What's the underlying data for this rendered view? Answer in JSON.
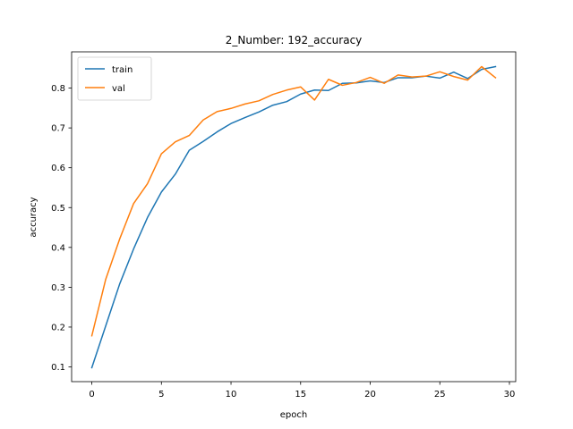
{
  "chart_data": {
    "type": "line",
    "title": "2_Number: 192_accuracy",
    "xlabel": "epoch",
    "ylabel": "accuracy",
    "xlim": [
      -1.45,
      30.45
    ],
    "ylim": [
      0.063,
      0.891
    ],
    "xticks": [
      0,
      5,
      10,
      15,
      20,
      25,
      30
    ],
    "yticks": [
      0.1,
      0.2,
      0.3,
      0.4,
      0.5,
      0.6,
      0.7,
      0.8
    ],
    "xtick_labels": [
      "0",
      "5",
      "10",
      "15",
      "20",
      "25",
      "30"
    ],
    "ytick_labels": [
      "0.1",
      "0.2",
      "0.3",
      "0.4",
      "0.5",
      "0.6",
      "0.7",
      "0.8"
    ],
    "grid": false,
    "legend_position": "upper-left",
    "series": [
      {
        "name": "train",
        "color": "#1f77b4",
        "x": [
          0,
          1,
          2,
          3,
          4,
          5,
          6,
          7,
          8,
          9,
          10,
          11,
          12,
          13,
          14,
          15,
          16,
          17,
          18,
          19,
          20,
          21,
          22,
          23,
          24,
          25,
          26,
          27,
          28,
          29
        ],
        "values": [
          0.098,
          0.203,
          0.308,
          0.396,
          0.475,
          0.539,
          0.584,
          0.644,
          0.666,
          0.69,
          0.711,
          0.726,
          0.74,
          0.757,
          0.766,
          0.785,
          0.795,
          0.794,
          0.812,
          0.813,
          0.818,
          0.814,
          0.826,
          0.826,
          0.83,
          0.825,
          0.84,
          0.824,
          0.847,
          0.854
        ]
      },
      {
        "name": "val",
        "color": "#ff7f0e",
        "x": [
          0,
          1,
          2,
          3,
          4,
          5,
          6,
          7,
          8,
          9,
          10,
          11,
          12,
          13,
          14,
          15,
          16,
          17,
          18,
          19,
          20,
          21,
          22,
          23,
          24,
          25,
          26,
          27,
          28,
          29
        ],
        "values": [
          0.178,
          0.32,
          0.421,
          0.51,
          0.56,
          0.635,
          0.665,
          0.681,
          0.72,
          0.741,
          0.749,
          0.76,
          0.768,
          0.784,
          0.795,
          0.803,
          0.77,
          0.822,
          0.807,
          0.814,
          0.827,
          0.812,
          0.833,
          0.828,
          0.83,
          0.841,
          0.829,
          0.82,
          0.854,
          0.826
        ]
      }
    ]
  }
}
